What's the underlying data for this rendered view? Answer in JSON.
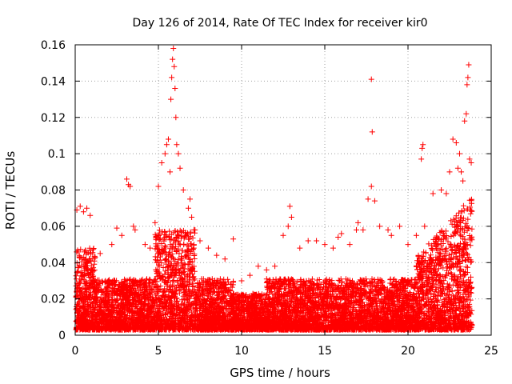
{
  "chart_data": {
    "type": "scatter",
    "title": "Day 126 of 2014, Rate Of TEC Index for receiver kir0",
    "xlabel": "GPS time / hours",
    "ylabel": "ROTI / TECUs",
    "xlim": [
      0,
      25
    ],
    "ylim": [
      0,
      0.16
    ],
    "x_ticks": [
      0,
      5,
      10,
      15,
      20,
      25
    ],
    "x_tick_labels": [
      "0",
      "5",
      "10",
      "15",
      "20",
      "25"
    ],
    "y_ticks": [
      0,
      0.02,
      0.04,
      0.06,
      0.08,
      0.1,
      0.12,
      0.14,
      0.16
    ],
    "y_tick_labels": [
      "0",
      "0.02",
      "0.04",
      "0.06",
      "0.08",
      "0.1",
      "0.12",
      "0.14",
      "0.16"
    ],
    "grid": true,
    "marker": "+",
    "color": "#ff0000",
    "series": [
      {
        "name": "kir0",
        "points": [
          [
            0.1,
            0.069
          ],
          [
            0.3,
            0.071
          ],
          [
            0.5,
            0.068
          ],
          [
            0.7,
            0.07
          ],
          [
            0.9,
            0.066
          ],
          [
            1.5,
            0.045
          ],
          [
            2.2,
            0.05
          ],
          [
            2.5,
            0.059
          ],
          [
            2.8,
            0.055
          ],
          [
            3.1,
            0.086
          ],
          [
            3.2,
            0.083
          ],
          [
            3.3,
            0.082
          ],
          [
            3.5,
            0.06
          ],
          [
            3.6,
            0.058
          ],
          [
            4.2,
            0.05
          ],
          [
            4.5,
            0.048
          ],
          [
            4.8,
            0.062
          ],
          [
            5.0,
            0.082
          ],
          [
            5.2,
            0.095
          ],
          [
            5.4,
            0.1
          ],
          [
            5.5,
            0.105
          ],
          [
            5.6,
            0.108
          ],
          [
            5.7,
            0.09
          ],
          [
            5.75,
            0.13
          ],
          [
            5.8,
            0.142
          ],
          [
            5.85,
            0.152
          ],
          [
            5.9,
            0.158
          ],
          [
            5.95,
            0.148
          ],
          [
            6.0,
            0.136
          ],
          [
            6.05,
            0.12
          ],
          [
            6.1,
            0.105
          ],
          [
            6.2,
            0.1
          ],
          [
            6.3,
            0.092
          ],
          [
            6.5,
            0.08
          ],
          [
            6.8,
            0.07
          ],
          [
            6.9,
            0.075
          ],
          [
            7.0,
            0.065
          ],
          [
            7.2,
            0.058
          ],
          [
            7.5,
            0.052
          ],
          [
            8.0,
            0.048
          ],
          [
            8.5,
            0.044
          ],
          [
            9.0,
            0.042
          ],
          [
            9.5,
            0.053
          ],
          [
            10.0,
            0.03
          ],
          [
            10.5,
            0.033
          ],
          [
            11.0,
            0.038
          ],
          [
            11.5,
            0.036
          ],
          [
            12.0,
            0.038
          ],
          [
            12.5,
            0.055
          ],
          [
            12.8,
            0.06
          ],
          [
            12.9,
            0.071
          ],
          [
            13.0,
            0.065
          ],
          [
            13.5,
            0.048
          ],
          [
            14.0,
            0.052
          ],
          [
            14.5,
            0.052
          ],
          [
            15.0,
            0.05
          ],
          [
            15.5,
            0.048
          ],
          [
            15.8,
            0.054
          ],
          [
            16.0,
            0.056
          ],
          [
            16.5,
            0.05
          ],
          [
            16.9,
            0.058
          ],
          [
            17.0,
            0.062
          ],
          [
            17.3,
            0.058
          ],
          [
            17.6,
            0.075
          ],
          [
            17.8,
            0.082
          ],
          [
            17.85,
            0.112
          ],
          [
            17.8,
            0.141
          ],
          [
            18.0,
            0.074
          ],
          [
            18.3,
            0.06
          ],
          [
            18.8,
            0.058
          ],
          [
            19.0,
            0.055
          ],
          [
            19.5,
            0.06
          ],
          [
            20.0,
            0.05
          ],
          [
            20.5,
            0.055
          ],
          [
            20.8,
            0.097
          ],
          [
            20.85,
            0.103
          ],
          [
            20.9,
            0.105
          ],
          [
            21.0,
            0.06
          ],
          [
            21.5,
            0.078
          ],
          [
            22.0,
            0.08
          ],
          [
            22.3,
            0.078
          ],
          [
            22.5,
            0.09
          ],
          [
            22.7,
            0.108
          ],
          [
            22.9,
            0.106
          ],
          [
            23.0,
            0.092
          ],
          [
            23.1,
            0.1
          ],
          [
            23.2,
            0.09
          ],
          [
            23.3,
            0.085
          ],
          [
            23.4,
            0.118
          ],
          [
            23.5,
            0.122
          ],
          [
            23.55,
            0.138
          ],
          [
            23.6,
            0.142
          ],
          [
            23.65,
            0.149
          ],
          [
            23.7,
            0.097
          ],
          [
            23.8,
            0.095
          ]
        ]
      }
    ]
  }
}
